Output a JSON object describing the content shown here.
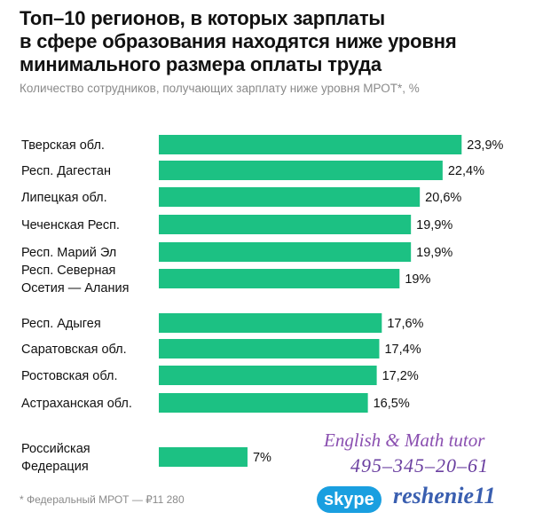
{
  "chart_data": {
    "type": "bar",
    "orientation": "horizontal",
    "title": "Топ–10 регионов, в которых зарплаты\nв сфере образования находятся ниже уровня\nминимального размера оплаты труда",
    "subtitle": "Количество сотрудников, получающих зарплату ниже уровня МРОТ*, %",
    "categories": [
      "Тверская обл.",
      "Респ. Дагестан",
      "Липецкая обл.",
      "Чеченская Респ.",
      "Респ. Марий Эл",
      "Респ. Северная\nОсетия — Алания",
      "Респ. Адыгея",
      "Саратовская обл.",
      "Ростовская обл.",
      "Астраханская обл.",
      "Российская\nФедерация"
    ],
    "values": [
      23.9,
      22.4,
      20.6,
      19.9,
      19.9,
      19,
      17.6,
      17.4,
      17.2,
      16.5,
      7
    ],
    "value_labels": [
      "23,9%",
      "22,4%",
      "20,6%",
      "19,9%",
      "19,9%",
      "19%",
      "17,6%",
      "17,4%",
      "17,2%",
      "16,5%",
      "7%"
    ],
    "xlim": [
      0,
      25
    ],
    "bar_color": "#1cc183",
    "grid": false,
    "legend": "none",
    "footnote": "* Федеральный МРОТ — ₽11 280"
  },
  "watermark": {
    "line1": "English & Math tutor",
    "line2": "495–345–20–61",
    "skype_label": "skype",
    "handle": "reshenie11"
  }
}
